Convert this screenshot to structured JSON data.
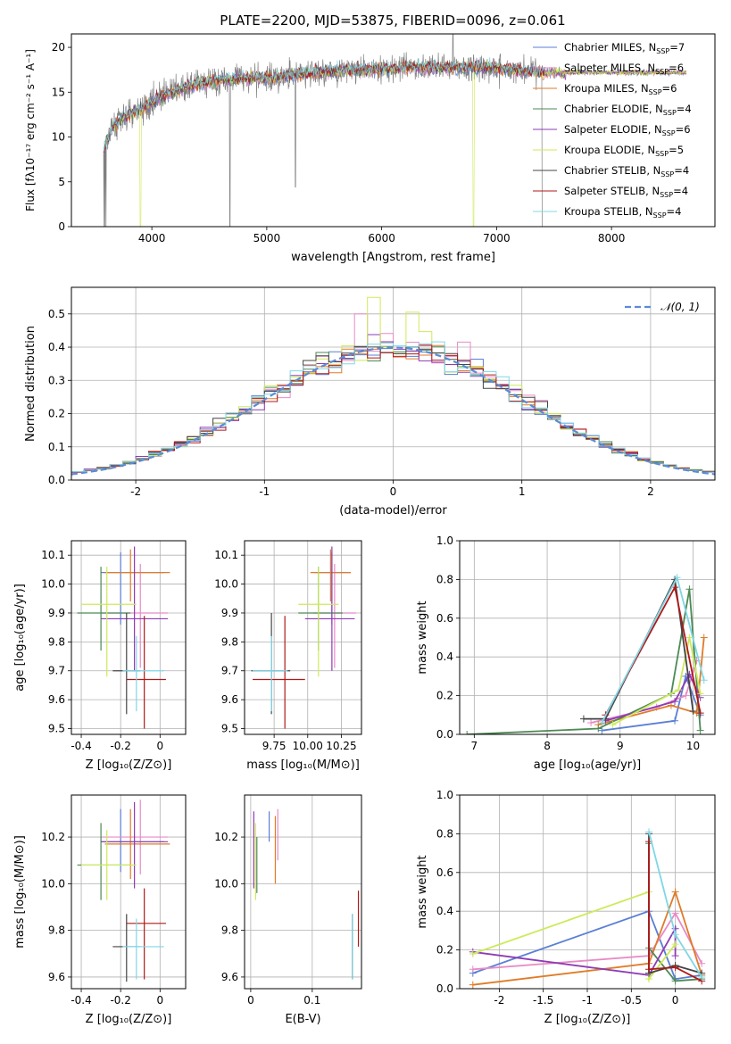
{
  "figure": {
    "title": "PLATE=2200, MJD=53875, FIBERID=0096, z=0.061"
  },
  "colors": {
    "Chabrier MILES": "#5b7fd6",
    "Salpeter MILES": "#e88ac6",
    "Kroupa MILES": "#e07b28",
    "Chabrier ELODIE": "#4c8a55",
    "Salpeter ELODIE": "#8e3bb5",
    "Kroupa ELODIE": "#cdea5b",
    "Chabrier STELIB": "#444444",
    "Salpeter STELIB": "#b01818",
    "Kroupa STELIB": "#7fd7e6",
    "data": "#808080",
    "normal": "#5b8bd6"
  },
  "chart_data": [
    {
      "type": "line",
      "id": "spectrum",
      "xlabel": "wavelength [Angstrom, rest frame]",
      "ylabel": "Flux [fλ10⁻¹⁷ erg cm⁻² s⁻¹ A⁻¹]",
      "xlim": [
        3300,
        8900
      ],
      "ylim": [
        0,
        21.5
      ],
      "xticks": [
        4000,
        5000,
        6000,
        7000,
        8000
      ],
      "yticks": [
        0,
        5,
        10,
        15,
        20
      ],
      "grid": false,
      "legend_position": "upper right",
      "legend": [
        {
          "label": "Chabrier MILES, N",
          "sub": "SSP",
          "tail": "=7",
          "color_key": "Chabrier MILES"
        },
        {
          "label": "Salpeter MILES, N",
          "sub": "SSP",
          "tail": "=6",
          "color_key": "Salpeter MILES"
        },
        {
          "label": "Kroupa MILES, N",
          "sub": "SSP",
          "tail": "=6",
          "color_key": "Kroupa MILES"
        },
        {
          "label": "Chabrier ELODIE, N",
          "sub": "SSP",
          "tail": "=4",
          "color_key": "Chabrier ELODIE"
        },
        {
          "label": "Salpeter ELODIE, N",
          "sub": "SSP",
          "tail": "=6",
          "color_key": "Salpeter ELODIE"
        },
        {
          "label": "Kroupa ELODIE, N",
          "sub": "SSP",
          "tail": "=5",
          "color_key": "Kroupa ELODIE"
        },
        {
          "label": "Chabrier STELIB, N",
          "sub": "SSP",
          "tail": "=4",
          "color_key": "Chabrier STELIB"
        },
        {
          "label": "Salpeter STELIB, N",
          "sub": "SSP",
          "tail": "=4",
          "color_key": "Salpeter STELIB"
        },
        {
          "label": "Kroupa STELIB, N",
          "sub": "SSP",
          "tail": "=4",
          "color_key": "Kroupa STELIB"
        }
      ],
      "continuum": {
        "x": [
          3580,
          3650,
          3750,
          3850,
          3950,
          4050,
          4150,
          4300,
          4450,
          4600,
          4800,
          5000,
          5200,
          5400,
          5600,
          5800,
          6000,
          6200,
          6400,
          6600,
          6800,
          7000,
          7200,
          7400,
          7600
        ],
        "y": [
          8.5,
          11.0,
          12.2,
          12.8,
          13.5,
          14.3,
          14.9,
          15.6,
          16.0,
          16.4,
          16.5,
          16.6,
          16.9,
          17.1,
          17.3,
          17.5,
          17.6,
          17.7,
          17.8,
          17.8,
          17.8,
          17.7,
          17.4,
          17.2,
          17.2
        ]
      },
      "data_range": [
        3580,
        7420
      ],
      "model_range": [
        3580,
        8650
      ]
    },
    {
      "type": "bar",
      "id": "residual-hist",
      "xlabel": "(data-model)/error",
      "ylabel": "Normed distribution",
      "xlim": [
        -2.5,
        2.5
      ],
      "ylim": [
        0,
        0.58
      ],
      "xticks": [
        -2,
        -1,
        0,
        1,
        2
      ],
      "yticks": [
        0.0,
        0.1,
        0.2,
        0.3,
        0.4,
        0.5
      ],
      "grid": true,
      "bin_width": 0.1,
      "legend_label": "𝒩(0, 1)",
      "spikes": [
        {
          "series": "Kroupa ELODIE",
          "x": -0.15,
          "y": 0.55
        },
        {
          "series": "Kroupa ELODIE",
          "x": 0.15,
          "y": 0.505
        },
        {
          "series": "Salpeter MILES",
          "x": -0.25,
          "y": 0.5
        },
        {
          "series": "Salpeter MILES",
          "x": 0.55,
          "y": 0.415
        }
      ]
    },
    {
      "type": "scatter",
      "id": "age-vs-Z",
      "xlabel": "Z [log₁₀(Z/Z⊙)]",
      "ylabel": "age  [log₁₀(age/yr)]",
      "xlim": [
        -0.45,
        0.13
      ],
      "ylim": [
        9.48,
        10.15
      ],
      "xticks": [
        -0.4,
        -0.2,
        0.0
      ],
      "yticks": [
        9.5,
        9.6,
        9.7,
        9.8,
        9.9,
        10.0,
        10.1
      ],
      "grid": true
    },
    {
      "type": "scatter",
      "id": "age-vs-mass",
      "xlabel": "mass [log₁₀(M/M⊙)]",
      "ylabel": "",
      "xlim": [
        9.53,
        10.4
      ],
      "ylim": [
        9.48,
        10.15
      ],
      "xticks": [
        9.75,
        10.0,
        10.25
      ],
      "xticklabels": [
        "9.75",
        "10.00",
        "10.25"
      ],
      "yticks": [
        9.5,
        9.6,
        9.7,
        9.8,
        9.9,
        10.0,
        10.1
      ],
      "grid": true
    },
    {
      "type": "line",
      "id": "weight-vs-age",
      "xlabel": "age  [log₁₀(age/yr)]",
      "ylabel": "mass weight",
      "xlim": [
        6.8,
        10.3
      ],
      "ylim": [
        0,
        1.0
      ],
      "xticks": [
        7,
        8,
        9,
        10
      ],
      "yticks": [
        0.0,
        0.2,
        0.4,
        0.6,
        0.8,
        1.0
      ],
      "grid": true,
      "series": [
        {
          "name": "Chabrier MILES",
          "x": [
            8.75,
            9.75,
            9.9,
            10.1
          ],
          "y": [
            0.02,
            0.07,
            0.3,
            0.1
          ]
        },
        {
          "name": "Salpeter MILES",
          "x": [
            8.6,
            9.5,
            9.9,
            10.05
          ],
          "y": [
            0.06,
            0.14,
            0.2,
            0.38
          ]
        },
        {
          "name": "Kroupa MILES",
          "x": [
            8.7,
            9.7,
            10.05,
            10.15
          ],
          "y": [
            0.05,
            0.15,
            0.11,
            0.5
          ]
        },
        {
          "name": "Chabrier ELODIE",
          "x": [
            6.9,
            8.7,
            9.7,
            9.95,
            10.1
          ],
          "y": [
            0.0,
            0.03,
            0.21,
            0.75,
            0.02
          ]
        },
        {
          "name": "Salpeter ELODIE",
          "x": [
            8.8,
            9.75,
            9.95,
            10.1
          ],
          "y": [
            0.07,
            0.17,
            0.31,
            0.19
          ]
        },
        {
          "name": "Kroupa ELODIE",
          "x": [
            8.9,
            9.8,
            9.95,
            10.1
          ],
          "y": [
            0.05,
            0.23,
            0.5,
            0.21
          ]
        },
        {
          "name": "Chabrier STELIB",
          "x": [
            8.5,
            8.8,
            9.75,
            10.0
          ],
          "y": [
            0.08,
            0.08,
            0.8,
            0.12
          ]
        },
        {
          "name": "Salpeter STELIB",
          "x": [
            8.8,
            9.75,
            10.1
          ],
          "y": [
            0.1,
            0.76,
            0.11
          ]
        },
        {
          "name": "Kroupa STELIB",
          "x": [
            8.75,
            9.78,
            10.15
          ],
          "y": [
            0.06,
            0.81,
            0.28
          ]
        }
      ]
    },
    {
      "type": "scatter",
      "id": "mass-vs-Z",
      "xlabel": "Z [log₁₀(Z/Z⊙)]",
      "ylabel": "mass [log₁₀(M/M⊙)]",
      "xlim": [
        -0.45,
        0.13
      ],
      "ylim": [
        9.55,
        10.38
      ],
      "xticks": [
        -0.4,
        -0.2,
        0.0
      ],
      "yticks": [
        9.6,
        9.8,
        10.0,
        10.2
      ],
      "grid": true
    },
    {
      "type": "scatter",
      "id": "mass-vs-EBV",
      "xlabel": "E(B-V)",
      "ylabel": "",
      "xlim": [
        -0.01,
        0.18
      ],
      "ylim": [
        9.55,
        10.38
      ],
      "xticks": [
        0.0,
        0.1
      ],
      "yticks": [
        9.6,
        9.8,
        10.0,
        10.2
      ],
      "grid": true
    },
    {
      "type": "line",
      "id": "weight-vs-Z",
      "xlabel": "Z [log₁₀(Z/Z⊙)]",
      "ylabel": "mass weight",
      "xlim": [
        -2.45,
        0.45
      ],
      "ylim": [
        0,
        1.0
      ],
      "xticks": [
        -2.0,
        -1.5,
        -1.0,
        -0.5,
        0.0
      ],
      "yticks": [
        0.0,
        0.2,
        0.4,
        0.6,
        0.8,
        1.0
      ],
      "grid": true,
      "series": [
        {
          "name": "Chabrier MILES",
          "x": [
            -2.3,
            -0.3,
            0.0,
            0.3
          ],
          "y": [
            0.08,
            0.4,
            0.05,
            0.07
          ]
        },
        {
          "name": "Salpeter MILES",
          "x": [
            -2.3,
            -0.3,
            0.0,
            0.3
          ],
          "y": [
            0.1,
            0.17,
            0.39,
            0.13
          ]
        },
        {
          "name": "Kroupa MILES",
          "x": [
            -2.3,
            -0.3,
            0.0,
            0.3
          ],
          "y": [
            0.02,
            0.13,
            0.5,
            0.07
          ]
        },
        {
          "name": "Chabrier ELODIE",
          "x": [
            -0.3,
            -0.3,
            0.0,
            0.3
          ],
          "y": [
            0.75,
            0.21,
            0.04,
            0.05
          ]
        },
        {
          "name": "Salpeter ELODIE",
          "x": [
            -2.3,
            -0.3,
            0.0,
            0.0
          ],
          "y": [
            0.19,
            0.07,
            0.31,
            0.17
          ]
        },
        {
          "name": "Kroupa ELODIE",
          "x": [
            -2.3,
            -0.3,
            -0.3,
            0.0
          ],
          "y": [
            0.18,
            0.5,
            0.05,
            0.23
          ]
        },
        {
          "name": "Chabrier STELIB",
          "x": [
            -0.3,
            -0.3,
            0.0,
            0.3
          ],
          "y": [
            0.8,
            0.08,
            0.12,
            0.08
          ]
        },
        {
          "name": "Salpeter STELIB",
          "x": [
            -0.3,
            -0.3,
            0.0,
            0.3
          ],
          "y": [
            0.76,
            0.1,
            0.11,
            0.04
          ]
        },
        {
          "name": "Kroupa STELIB",
          "x": [
            -0.3,
            0.0,
            0.3
          ],
          "y": [
            0.81,
            0.28,
            0.06
          ]
        }
      ]
    }
  ],
  "errorbars": [
    {
      "series": "Chabrier MILES",
      "Z": -0.2,
      "Zerr": [
        0.1,
        0.22
      ],
      "age": 10.04,
      "ageerr": [
        0.18,
        0.07
      ],
      "mass": 10.18,
      "masserr": [
        0.13,
        0.14
      ],
      "ebv": 0.03,
      "ebverr": [
        0.0,
        0.13
      ]
    },
    {
      "series": "Salpeter MILES",
      "Z": -0.1,
      "Zerr": [
        0.2,
        0.14
      ],
      "age": 9.9,
      "ageerr": [
        0.19,
        0.17
      ],
      "mass": 10.2,
      "masserr": [
        0.16,
        0.16
      ],
      "ebv": 0.044,
      "ebverr": [
        0.1,
        0.12
      ]
    },
    {
      "series": "Kroupa MILES",
      "Z": -0.15,
      "Zerr": [
        0.13,
        0.2
      ],
      "age": 10.04,
      "ageerr": [
        0.1,
        0.08
      ],
      "mass": 10.17,
      "masserr": [
        0.15,
        0.15
      ],
      "ebv": 0.04,
      "ebverr": [
        0.17,
        0.12
      ]
    },
    {
      "series": "Chabrier ELODIE",
      "Z": -0.3,
      "Zerr": [
        0.12,
        0.15
      ],
      "age": 9.9,
      "ageerr": [
        0.13,
        0.16
      ],
      "mass": 10.08,
      "masserr": [
        0.15,
        0.18
      ],
      "ebv": 0.01,
      "ebverr": [
        0.12,
        0.12
      ]
    },
    {
      "series": "Salpeter ELODIE",
      "Z": -0.13,
      "Zerr": [
        0.17,
        0.17
      ],
      "age": 9.88,
      "ageerr": [
        0.18,
        0.25
      ],
      "mass": 10.18,
      "masserr": [
        0.2,
        0.17
      ],
      "ebv": 0.005,
      "ebverr": [
        0.2,
        0.13
      ]
    },
    {
      "series": "Kroupa ELODIE",
      "Z": -0.27,
      "Zerr": [
        0.13,
        0.15
      ],
      "age": 9.93,
      "ageerr": [
        0.25,
        0.13
      ],
      "mass": 10.08,
      "masserr": [
        0.15,
        0.15
      ],
      "ebv": 0.008,
      "ebverr": [
        0.15,
        0.18
      ]
    },
    {
      "series": "Chabrier STELIB",
      "Z": -0.17,
      "Zerr": [
        0.07,
        0.07
      ],
      "age": 9.7,
      "ageerr": [
        0.15,
        0.2
      ],
      "mass": 9.73,
      "masserr": [
        0.15,
        0.14
      ],
      "ebv": 0.165,
      "ebverr": [
        0.14,
        0.14
      ]
    },
    {
      "series": "Salpeter STELIB",
      "Z": -0.08,
      "Zerr": [
        0.09,
        0.11
      ],
      "age": 9.67,
      "ageerr": [
        0.17,
        0.22
      ],
      "mass": 9.83,
      "masserr": [
        0.24,
        0.15
      ],
      "ebv": 0.175,
      "ebverr": [
        0.1,
        0.14
      ]
    },
    {
      "series": "Kroupa STELIB",
      "Z": -0.12,
      "Zerr": [
        0.07,
        0.14
      ],
      "age": 9.7,
      "ageerr": [
        0.14,
        0.12
      ],
      "mass": 9.73,
      "masserr": [
        0.14,
        0.12
      ],
      "ebv": 0.165,
      "ebverr": [
        0.14,
        0.14
      ]
    }
  ]
}
